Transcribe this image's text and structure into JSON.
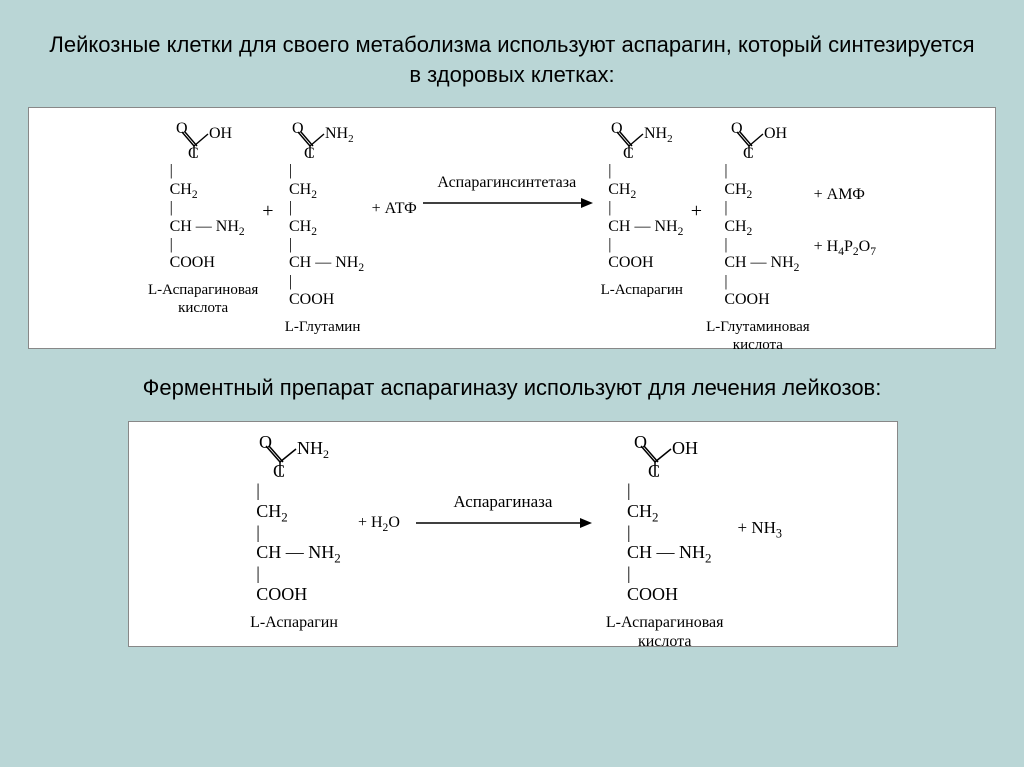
{
  "colors": {
    "page_bg": "#bad6d6",
    "box_bg": "#ffffff",
    "text": "#000000",
    "border": "#888888"
  },
  "title_font_size": 22,
  "mol_font_size": 16,
  "label_font_size": 15,
  "title": "Лейкозные клетки для своего метаболизма используют аспарагин, который синтезируется в здоровых клетках:",
  "subtitle": "Ферментный препарат аспарагиназу используют для лечения лейкозов:",
  "rxn1": {
    "enzyme": "Аспарагинсинтетаза",
    "plus": "+",
    "atp": "+ АТФ",
    "amf": "+ АМФ",
    "pyro": "+ H₄P₂O₇",
    "reactants": [
      {
        "top_branch": "OH",
        "chain": [
          "CH₂",
          "CH — NH₂",
          "COOH"
        ],
        "label": "L-Аспарагиновая\nкислота"
      },
      {
        "top_branch": "NH₂",
        "chain": [
          "CH₂",
          "CH₂",
          "CH — NH₂",
          "COOH"
        ],
        "label": "L-Глутамин"
      }
    ],
    "products": [
      {
        "top_branch": "NH₂",
        "chain": [
          "CH₂",
          "CH — NH₂",
          "COOH"
        ],
        "label": "L-Аспарагин"
      },
      {
        "top_branch": "OH",
        "chain": [
          "CH₂",
          "CH₂",
          "CH — NH₂",
          "COOH"
        ],
        "label": "L-Глутаминовая\nкислота"
      }
    ]
  },
  "rxn2": {
    "enzyme": "Аспарагиназа",
    "plus": "+",
    "h2o": "+ H₂O",
    "nh3": "+ NH₃",
    "reactant": {
      "top_branch": "NH₂",
      "chain": [
        "CH₂",
        "CH — NH₂",
        "COOH"
      ],
      "label": "L-Аспарагин"
    },
    "product": {
      "top_branch": "OH",
      "chain": [
        "CH₂",
        "CH — NH₂",
        "COOH"
      ],
      "label": "L-Аспарагиновая\nкислота"
    }
  }
}
